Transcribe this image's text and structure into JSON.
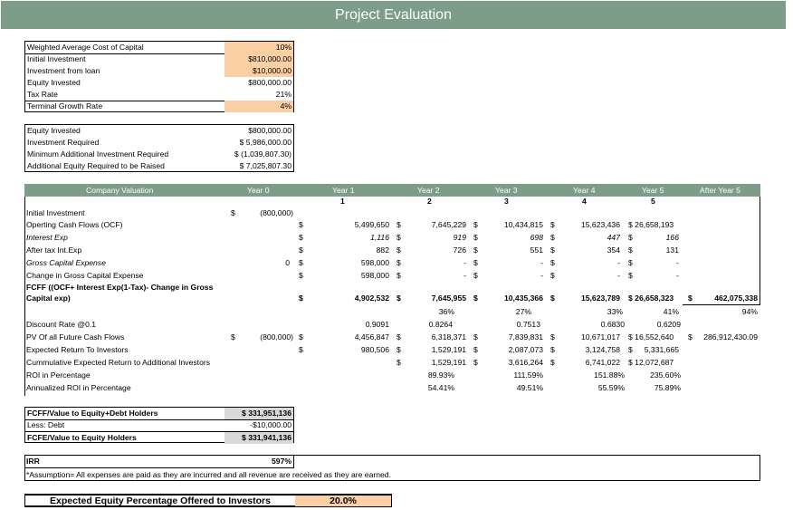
{
  "title": "Project Evaluation",
  "params": [
    {
      "label": "Weighted Average Cost of Capital",
      "value": "10%",
      "highlight": true
    },
    {
      "label": "Initial Investment",
      "value": "$810,000.00",
      "highlight": true
    },
    {
      "label": "Investment from loan",
      "value": "$10,000.00",
      "highlight": true
    },
    {
      "label": "Equity Invested",
      "value": "$800,000.00",
      "highlight": false
    },
    {
      "label": "Tax Rate",
      "value": "21%",
      "highlight": false
    },
    {
      "label": "Terminal Growth Rate",
      "value": "4%",
      "highlight": true
    }
  ],
  "equity": [
    {
      "label": "Equity Invested",
      "value": "$800,000.00"
    },
    {
      "label": "Investment Required",
      "value": "$  5,986,000.00"
    },
    {
      "label": "Minimum Additional Investment Required",
      "value": "$ (1,039,807.30)"
    },
    {
      "label": "Additional Equity Required to be Raised",
      "value": "$  7,025,807.30"
    }
  ],
  "valuation": {
    "headers": [
      "Company Valuation",
      "Year 0",
      "Year 1",
      "Year 2",
      "Year 3",
      "Year 4",
      "Year 5",
      "After Year 5"
    ],
    "year_numbers": [
      "1",
      "2",
      "3",
      "4",
      "5"
    ],
    "rows": [
      {
        "label": "Initial Investment",
        "cells": [
          "$",
          "(800,000)",
          "",
          "",
          "",
          "",
          "",
          "",
          "",
          "",
          "",
          "",
          ""
        ]
      },
      {
        "label": "Operting Cash Flows (OCF)",
        "cells": [
          "",
          "",
          "$",
          "5,499,650",
          "$",
          "7,645,229",
          "$",
          "10,434,815",
          "$",
          "15,623,436",
          "$ 26,658,193",
          "",
          ""
        ]
      },
      {
        "label": "Interest Exp",
        "italic": true,
        "cells": [
          "",
          "",
          "$",
          "1,116",
          "$",
          "919",
          "$",
          "698",
          "$",
          "447",
          "$",
          "166",
          ""
        ]
      },
      {
        "label": "After tax Int.Exp",
        "cells": [
          "",
          "",
          "$",
          "882",
          "$",
          "726",
          "$",
          "551",
          "$",
          "354",
          "$",
          "131",
          ""
        ]
      },
      {
        "label": "Gross Capital Expense",
        "italic": true,
        "cells": [
          "",
          "0",
          "$",
          "598,000",
          "$",
          "-",
          "$",
          "-",
          "$",
          "-",
          "$",
          "-",
          ""
        ]
      },
      {
        "label": "Change in Gross Capital Expense",
        "cells": [
          "",
          "",
          "$",
          "598,000",
          "$",
          "-",
          "$",
          "-",
          "$",
          "-",
          "$",
          "-",
          ""
        ]
      }
    ],
    "fcff_label_1": "FCFF ((OCF+ Interest Exp(1-Tax)- Change in Gross",
    "fcff_label_2": "Capital exp)",
    "fcff_values": [
      "$",
      "4,902,532",
      "$",
      "7,645,955",
      "$",
      "10,435,366",
      "$",
      "15,623,789",
      "$ 26,658,323",
      "$",
      "462,075,338"
    ],
    "growth_values": [
      "36%",
      "27%",
      "33%",
      "41%",
      "94%"
    ],
    "discount_label": "Discount Rate @0.1",
    "discount_values": [
      "0.9091",
      "0.8264",
      "0.7513",
      "0.6830",
      "0.6209"
    ],
    "pv_label": "PV Of all Future Cash Flows",
    "pv_values": [
      "$",
      "(800,000)",
      "$",
      "4,456,847",
      "$",
      "6,318,371",
      "$",
      "7,839,831",
      "$",
      "10,671,017",
      "$ 16,552,640",
      "$",
      "286,912,430.09"
    ],
    "expected_label": "Expected Return To Investors",
    "expected_values": [
      "$",
      "980,506",
      "$",
      "1,529,191",
      "$",
      "2,087,073",
      "$",
      "3,124,758",
      "$",
      "5,331,665"
    ],
    "cumulative_label": "Cummulative Expected Return to Additional Investors",
    "cumulative_values": [
      "$",
      "1,529,191",
      "$",
      "3,616,264",
      "$",
      "6,741,022",
      "$ 12,072,687"
    ],
    "roi_label": "ROI in Percentage",
    "roi_values": [
      "89.93%",
      "111.59%",
      "151.88%",
      "235.60%"
    ],
    "annual_roi_label": "Annualized ROI in Percentage",
    "annual_roi_values": [
      "54.41%",
      "49.51%",
      "55.59%",
      "75.89%"
    ]
  },
  "summary": [
    {
      "label": "FCFF/Value to Equity+Debt Holders",
      "value": "$   331,951,136",
      "bold": true
    },
    {
      "label": "Less: Debt",
      "value": "-$10,000.00",
      "bold": false
    },
    {
      "label": "FCFE/Value to Equity Holders",
      "value": "$   331,941,136",
      "bold": true
    }
  ],
  "irr": {
    "label": "IRR",
    "value": "597%"
  },
  "assumption": "*Assumption= All expenses are paid as they are incurred and all revenue are received as they are earned.",
  "offer": {
    "label": "Expected Equity Percentage Offered to Investors",
    "value": "20.0%"
  },
  "colors": {
    "header_green": "#7d9d88",
    "highlight_peach": "#fbcfa4"
  }
}
